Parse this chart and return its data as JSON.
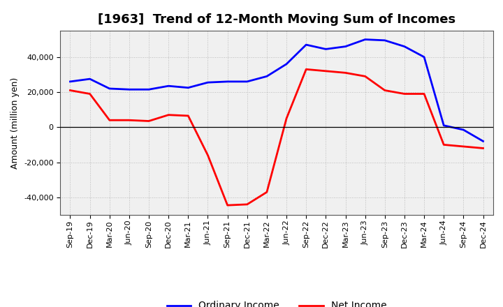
{
  "title": "[1963]  Trend of 12-Month Moving Sum of Incomes",
  "ylabel": "Amount (million yen)",
  "x_labels": [
    "Sep-19",
    "Dec-19",
    "Mar-20",
    "Jun-20",
    "Sep-20",
    "Dec-20",
    "Mar-21",
    "Jun-21",
    "Sep-21",
    "Dec-21",
    "Mar-22",
    "Jun-22",
    "Sep-22",
    "Dec-22",
    "Mar-23",
    "Jun-23",
    "Sep-23",
    "Dec-23",
    "Mar-24",
    "Jun-24",
    "Sep-24",
    "Dec-24"
  ],
  "ordinary_income": [
    26000,
    27500,
    22000,
    21500,
    21500,
    23500,
    22500,
    25500,
    26000,
    26000,
    29000,
    36000,
    47000,
    44500,
    46000,
    50000,
    49500,
    46000,
    40000,
    1000,
    -1500,
    -8000
  ],
  "net_income": [
    21000,
    19000,
    4000,
    4000,
    3500,
    7000,
    6500,
    -16000,
    -44500,
    -44000,
    -37000,
    5000,
    33000,
    32000,
    31000,
    29000,
    21000,
    19000,
    19000,
    -10000,
    -11000,
    -12000
  ],
  "ordinary_color": "#0000ff",
  "net_color": "#ff0000",
  "background_color": "#ffffff",
  "plot_bg_color": "#f0f0f0",
  "grid_color": "#bbbbbb",
  "ylim": [
    -50000,
    55000
  ],
  "yticks": [
    -40000,
    -20000,
    0,
    20000,
    40000
  ],
  "line_width": 2.0,
  "title_fontsize": 13,
  "axis_fontsize": 9,
  "tick_fontsize": 8,
  "legend_labels": [
    "Ordinary Income",
    "Net Income"
  ]
}
